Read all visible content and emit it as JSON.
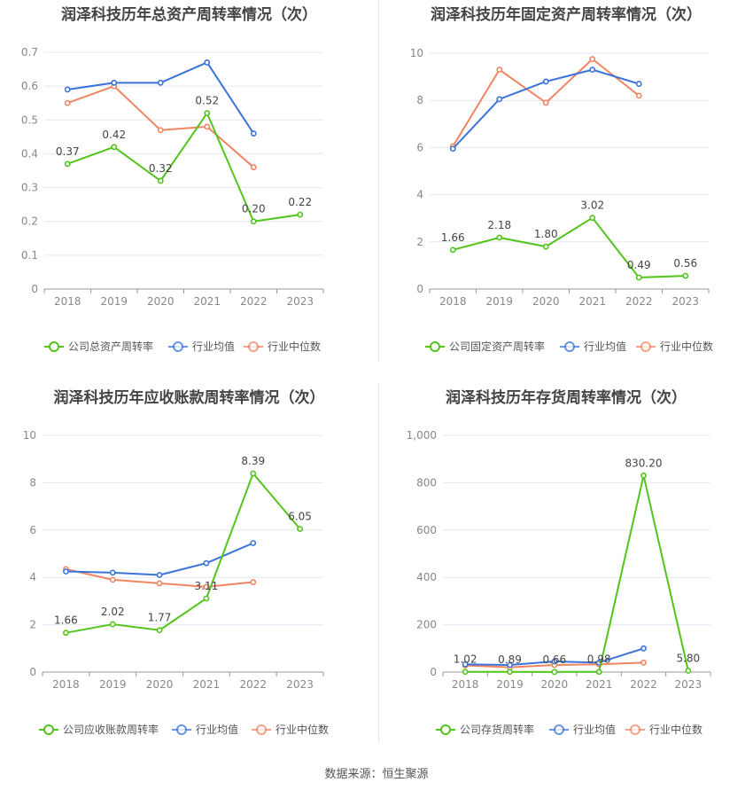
{
  "source": "数据来源：恒生聚源",
  "chart_data": [
    {
      "type": "line",
      "title": "润泽科技历年总资产周转率情况（次）",
      "categories": [
        "2018",
        "2019",
        "2020",
        "2021",
        "2022",
        "2023"
      ],
      "ylim": [
        0,
        0.7
      ],
      "yticks": [
        "0",
        "0.1",
        "0.2",
        "0.3",
        "0.4",
        "0.5",
        "0.6",
        "0.7"
      ],
      "grid": true,
      "legend_position": "bottom",
      "series": [
        {
          "name": "公司总资产周转率",
          "color": "#52c41a",
          "values": [
            0.37,
            0.42,
            0.32,
            0.52,
            0.2,
            0.22
          ],
          "labels": [
            "0.37",
            "0.42",
            "0.32",
            "0.52",
            "0.20",
            "0.22"
          ]
        },
        {
          "name": "行业均值",
          "color": "#3b73db",
          "values": [
            0.59,
            0.61,
            0.61,
            0.67,
            0.46,
            null
          ]
        },
        {
          "name": "行业中位数",
          "color": "#f08562",
          "values": [
            0.55,
            0.6,
            0.47,
            0.48,
            0.36,
            null
          ]
        }
      ]
    },
    {
      "type": "line",
      "title": "润泽科技历年固定资产周转率情况（次）",
      "categories": [
        "2018",
        "2019",
        "2020",
        "2021",
        "2022",
        "2023"
      ],
      "ylim": [
        0,
        10
      ],
      "yticks": [
        "0",
        "2",
        "4",
        "6",
        "8",
        "10"
      ],
      "grid": true,
      "legend_position": "bottom",
      "series": [
        {
          "name": "公司固定资产周转率",
          "color": "#52c41a",
          "values": [
            1.66,
            2.18,
            1.8,
            3.02,
            0.49,
            0.56
          ],
          "labels": [
            "1.66",
            "2.18",
            "1.80",
            "3.02",
            "0.49",
            "0.56"
          ]
        },
        {
          "name": "行业均值",
          "color": "#3b73db",
          "values": [
            5.95,
            8.05,
            8.8,
            9.3,
            8.7,
            null
          ]
        },
        {
          "name": "行业中位数",
          "color": "#f08562",
          "values": [
            6.05,
            9.3,
            7.9,
            9.75,
            8.2,
            null
          ]
        }
      ]
    },
    {
      "type": "line",
      "title": "润泽科技历年应收账款周转率情况（次）",
      "categories": [
        "2018",
        "2019",
        "2020",
        "2021",
        "2022",
        "2023"
      ],
      "ylim": [
        0,
        10
      ],
      "yticks": [
        "0",
        "2",
        "4",
        "6",
        "8",
        "10"
      ],
      "grid": true,
      "legend_position": "bottom",
      "series": [
        {
          "name": "公司应收账款周转率",
          "color": "#52c41a",
          "values": [
            1.66,
            2.02,
            1.77,
            3.11,
            8.39,
            6.05
          ],
          "labels": [
            "1.66",
            "2.02",
            "1.77",
            "3.11",
            "8.39",
            "6.05"
          ]
        },
        {
          "name": "行业均值",
          "color": "#3b73db",
          "values": [
            4.25,
            4.2,
            4.1,
            4.6,
            5.45,
            null
          ]
        },
        {
          "name": "行业中位数",
          "color": "#f08562",
          "values": [
            4.35,
            3.9,
            3.75,
            3.6,
            3.8,
            null
          ]
        }
      ]
    },
    {
      "type": "line",
      "title": "润泽科技历年存货周转率情况（次）",
      "categories": [
        "2018",
        "2019",
        "2020",
        "2021",
        "2022",
        "2023"
      ],
      "ylim": [
        0,
        1000
      ],
      "yticks": [
        "0",
        "200",
        "400",
        "600",
        "800",
        "1,000"
      ],
      "grid": true,
      "legend_position": "bottom",
      "series": [
        {
          "name": "公司存货周转率",
          "color": "#52c41a",
          "values": [
            1.02,
            0.89,
            0.66,
            0.98,
            830.2,
            5.8
          ],
          "labels": [
            "1.02",
            "0.89",
            "0.66",
            "0.98",
            "830.20",
            "5.80"
          ]
        },
        {
          "name": "行业均值",
          "color": "#3b73db",
          "values": [
            33,
            30,
            45,
            40,
            100,
            null
          ]
        },
        {
          "name": "行业中位数",
          "color": "#f08562",
          "values": [
            28,
            20,
            30,
            33,
            40,
            null
          ]
        }
      ]
    }
  ]
}
